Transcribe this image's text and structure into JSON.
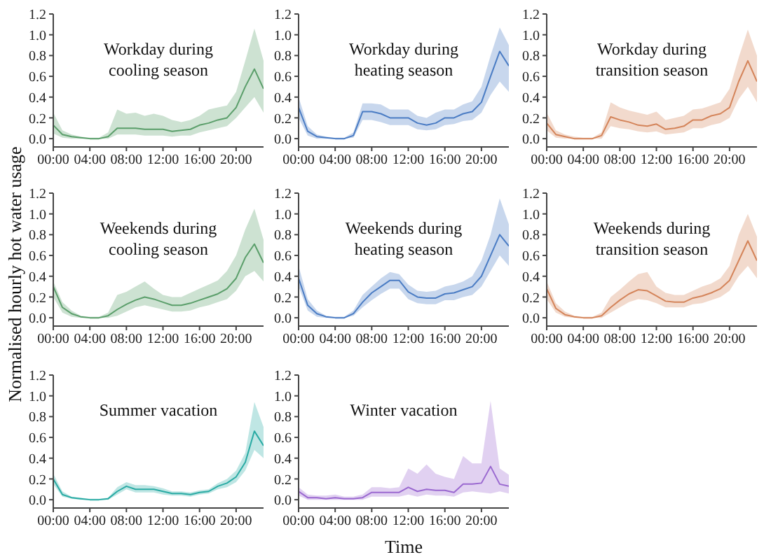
{
  "chart_data": [
    {
      "type": "line",
      "title": "Workday during cooling season",
      "x": [
        0,
        1,
        2,
        3,
        4,
        5,
        6,
        7,
        8,
        9,
        10,
        11,
        12,
        13,
        14,
        15,
        16,
        17,
        18,
        19,
        20,
        21,
        22,
        23
      ],
      "xlim": [
        0,
        23
      ],
      "xticks": [
        {
          "value": 0,
          "label": "00:00"
        },
        {
          "value": 4,
          "label": "04:00"
        },
        {
          "value": 8,
          "label": "08:00"
        },
        {
          "value": 12,
          "label": "12:00"
        },
        {
          "value": 16,
          "label": "16:00"
        },
        {
          "value": 20,
          "label": "20:00"
        }
      ],
      "ylim": [
        -0.08,
        1.2
      ],
      "yticks": [
        {
          "value": 0,
          "label": "0.0"
        },
        {
          "value": 0.2,
          "label": "0.2"
        },
        {
          "value": 0.4,
          "label": "0.4"
        },
        {
          "value": 0.6,
          "label": "0.6"
        },
        {
          "value": 0.8,
          "label": "0.8"
        },
        {
          "value": 1,
          "label": "1.0"
        },
        {
          "value": 1.2,
          "label": "1.2"
        }
      ],
      "series": [
        {
          "color": "#5a9e6a",
          "values": [
            0.13,
            0.04,
            0.02,
            0.01,
            0.0,
            0.0,
            0.02,
            0.1,
            0.1,
            0.1,
            0.09,
            0.09,
            0.09,
            0.07,
            0.08,
            0.09,
            0.13,
            0.15,
            0.18,
            0.2,
            0.3,
            0.5,
            0.67,
            0.48
          ],
          "lower": [
            0.05,
            0.01,
            0,
            0,
            0,
            0,
            0,
            0.04,
            0.04,
            0.04,
            0.03,
            0.03,
            0.03,
            0.02,
            0.03,
            0.03,
            0.06,
            0.08,
            0.1,
            0.12,
            0.2,
            0.3,
            0.4,
            0.25
          ],
          "upper": [
            0.25,
            0.08,
            0.04,
            0.02,
            0.01,
            0.01,
            0.06,
            0.28,
            0.24,
            0.25,
            0.22,
            0.24,
            0.22,
            0.18,
            0.16,
            0.18,
            0.22,
            0.28,
            0.3,
            0.32,
            0.45,
            0.75,
            1.06,
            0.75
          ]
        }
      ]
    },
    {
      "type": "line",
      "title": "Workday during heating season",
      "x": [
        0,
        1,
        2,
        3,
        4,
        5,
        6,
        7,
        8,
        9,
        10,
        11,
        12,
        13,
        14,
        15,
        16,
        17,
        18,
        19,
        20,
        21,
        22,
        23
      ],
      "xlim": [
        0,
        23
      ],
      "xticks": [
        {
          "value": 0,
          "label": "00:00"
        },
        {
          "value": 4,
          "label": "04:00"
        },
        {
          "value": 8,
          "label": "08:00"
        },
        {
          "value": 12,
          "label": "12:00"
        },
        {
          "value": 16,
          "label": "16:00"
        },
        {
          "value": 20,
          "label": "20:00"
        }
      ],
      "ylim": [
        -0.08,
        1.2
      ],
      "yticks": [
        {
          "value": 0,
          "label": "0.0"
        },
        {
          "value": 0.2,
          "label": "0.2"
        },
        {
          "value": 0.4,
          "label": "0.4"
        },
        {
          "value": 0.6,
          "label": "0.6"
        },
        {
          "value": 0.8,
          "label": "0.8"
        },
        {
          "value": 1,
          "label": "1.0"
        },
        {
          "value": 1.2,
          "label": "1.2"
        }
      ],
      "series": [
        {
          "color": "#4a7cc4",
          "values": [
            0.3,
            0.07,
            0.02,
            0.01,
            0,
            0,
            0.03,
            0.26,
            0.26,
            0.24,
            0.2,
            0.2,
            0.2,
            0.15,
            0.13,
            0.15,
            0.2,
            0.2,
            0.24,
            0.26,
            0.35,
            0.6,
            0.84,
            0.7
          ],
          "lower": [
            0.2,
            0.03,
            0,
            0,
            0,
            0,
            0.01,
            0.18,
            0.18,
            0.16,
            0.13,
            0.13,
            0.13,
            0.09,
            0.08,
            0.09,
            0.13,
            0.14,
            0.17,
            0.18,
            0.25,
            0.42,
            0.55,
            0.45
          ],
          "upper": [
            0.4,
            0.12,
            0.04,
            0.02,
            0.01,
            0.01,
            0.06,
            0.34,
            0.34,
            0.33,
            0.28,
            0.28,
            0.28,
            0.22,
            0.2,
            0.25,
            0.28,
            0.28,
            0.33,
            0.36,
            0.5,
            0.8,
            1.07,
            0.9
          ]
        }
      ]
    },
    {
      "type": "line",
      "title": "Workday during transition season",
      "x": [
        0,
        1,
        2,
        3,
        4,
        5,
        6,
        7,
        8,
        9,
        10,
        11,
        12,
        13,
        14,
        15,
        16,
        17,
        18,
        19,
        20,
        21,
        22,
        23
      ],
      "xlim": [
        0,
        23
      ],
      "xticks": [
        {
          "value": 0,
          "label": "00:00"
        },
        {
          "value": 4,
          "label": "04:00"
        },
        {
          "value": 8,
          "label": "08:00"
        },
        {
          "value": 12,
          "label": "12:00"
        },
        {
          "value": 16,
          "label": "16:00"
        },
        {
          "value": 20,
          "label": "20:00"
        }
      ],
      "ylim": [
        -0.08,
        1.2
      ],
      "yticks": [
        {
          "value": 0,
          "label": "0.0"
        },
        {
          "value": 0.2,
          "label": "0.2"
        },
        {
          "value": 0.4,
          "label": "0.4"
        },
        {
          "value": 0.6,
          "label": "0.6"
        },
        {
          "value": 0.8,
          "label": "0.8"
        },
        {
          "value": 1,
          "label": "1.0"
        },
        {
          "value": 1.2,
          "label": "1.2"
        }
      ],
      "series": [
        {
          "color": "#d4845a",
          "values": [
            0.15,
            0.04,
            0.02,
            0,
            0,
            0,
            0.03,
            0.21,
            0.18,
            0.16,
            0.13,
            0.12,
            0.14,
            0.09,
            0.1,
            0.12,
            0.18,
            0.18,
            0.22,
            0.24,
            0.3,
            0.55,
            0.75,
            0.55
          ],
          "lower": [
            0.08,
            0.01,
            0,
            0,
            0,
            0,
            0,
            0.12,
            0.1,
            0.09,
            0.07,
            0.06,
            0.07,
            0.04,
            0.05,
            0.06,
            0.1,
            0.1,
            0.13,
            0.15,
            0.2,
            0.38,
            0.5,
            0.35
          ],
          "upper": [
            0.25,
            0.08,
            0.04,
            0.02,
            0.01,
            0.01,
            0.06,
            0.35,
            0.3,
            0.27,
            0.25,
            0.23,
            0.26,
            0.18,
            0.2,
            0.22,
            0.28,
            0.29,
            0.32,
            0.35,
            0.48,
            0.78,
            1.05,
            0.8
          ]
        }
      ]
    },
    {
      "type": "line",
      "title": "Weekends during cooling season",
      "ylabel": "Normalised hourly hot water usage",
      "x": [
        0,
        1,
        2,
        3,
        4,
        5,
        6,
        7,
        8,
        9,
        10,
        11,
        12,
        13,
        14,
        15,
        16,
        17,
        18,
        19,
        20,
        21,
        22,
        23
      ],
      "xlim": [
        0,
        23
      ],
      "xticks": [
        {
          "value": 0,
          "label": "00:00"
        },
        {
          "value": 4,
          "label": "04:00"
        },
        {
          "value": 8,
          "label": "08:00"
        },
        {
          "value": 12,
          "label": "12:00"
        },
        {
          "value": 16,
          "label": "16:00"
        },
        {
          "value": 20,
          "label": "20:00"
        }
      ],
      "ylim": [
        -0.08,
        1.2
      ],
      "yticks": [
        {
          "value": 0,
          "label": "0.0"
        },
        {
          "value": 0.2,
          "label": "0.2"
        },
        {
          "value": 0.4,
          "label": "0.4"
        },
        {
          "value": 0.6,
          "label": "0.6"
        },
        {
          "value": 0.8,
          "label": "0.8"
        },
        {
          "value": 1,
          "label": "1.0"
        },
        {
          "value": 1.2,
          "label": "1.2"
        }
      ],
      "series": [
        {
          "color": "#5a9e6a",
          "values": [
            0.3,
            0.1,
            0.04,
            0.01,
            0,
            0,
            0.02,
            0.08,
            0.13,
            0.17,
            0.2,
            0.18,
            0.15,
            0.12,
            0.12,
            0.14,
            0.17,
            0.2,
            0.23,
            0.28,
            0.38,
            0.58,
            0.71,
            0.53
          ],
          "lower": [
            0.2,
            0.05,
            0.01,
            0,
            0,
            0,
            0,
            0.02,
            0.06,
            0.1,
            0.12,
            0.1,
            0.08,
            0.06,
            0.06,
            0.07,
            0.1,
            0.12,
            0.15,
            0.18,
            0.26,
            0.4,
            0.45,
            0.35
          ],
          "upper": [
            0.35,
            0.15,
            0.07,
            0.02,
            0.01,
            0.01,
            0.05,
            0.22,
            0.25,
            0.3,
            0.35,
            0.28,
            0.22,
            0.2,
            0.2,
            0.24,
            0.28,
            0.32,
            0.36,
            0.45,
            0.6,
            0.85,
            1.05,
            0.75
          ]
        }
      ]
    },
    {
      "type": "line",
      "title": "Weekends during heating season",
      "x": [
        0,
        1,
        2,
        3,
        4,
        5,
        6,
        7,
        8,
        9,
        10,
        11,
        12,
        13,
        14,
        15,
        16,
        17,
        18,
        19,
        20,
        21,
        22,
        23
      ],
      "xlim": [
        0,
        23
      ],
      "xticks": [
        {
          "value": 0,
          "label": "00:00"
        },
        {
          "value": 4,
          "label": "04:00"
        },
        {
          "value": 8,
          "label": "08:00"
        },
        {
          "value": 12,
          "label": "12:00"
        },
        {
          "value": 16,
          "label": "16:00"
        },
        {
          "value": 20,
          "label": "20:00"
        }
      ],
      "ylim": [
        -0.08,
        1.2
      ],
      "yticks": [
        {
          "value": 0,
          "label": "0.0"
        },
        {
          "value": 0.2,
          "label": "0.2"
        },
        {
          "value": 0.4,
          "label": "0.4"
        },
        {
          "value": 0.6,
          "label": "0.6"
        },
        {
          "value": 0.8,
          "label": "0.8"
        },
        {
          "value": 1,
          "label": "1.0"
        },
        {
          "value": 1.2,
          "label": "1.2"
        }
      ],
      "series": [
        {
          "color": "#4a7cc4",
          "values": [
            0.38,
            0.12,
            0.04,
            0.01,
            0,
            0,
            0.04,
            0.15,
            0.24,
            0.3,
            0.36,
            0.36,
            0.25,
            0.2,
            0.19,
            0.19,
            0.23,
            0.24,
            0.27,
            0.3,
            0.4,
            0.6,
            0.8,
            0.69
          ],
          "lower": [
            0.3,
            0.07,
            0.01,
            0,
            0,
            0,
            0.02,
            0.1,
            0.17,
            0.23,
            0.28,
            0.28,
            0.18,
            0.14,
            0.13,
            0.13,
            0.17,
            0.17,
            0.2,
            0.22,
            0.3,
            0.45,
            0.6,
            0.5
          ],
          "upper": [
            0.5,
            0.18,
            0.07,
            0.02,
            0.01,
            0.01,
            0.07,
            0.22,
            0.3,
            0.38,
            0.44,
            0.42,
            0.32,
            0.26,
            0.25,
            0.26,
            0.3,
            0.32,
            0.35,
            0.4,
            0.55,
            0.8,
            1.15,
            0.9
          ]
        }
      ]
    },
    {
      "type": "line",
      "title": "Weekends during transition season",
      "x": [
        0,
        1,
        2,
        3,
        4,
        5,
        6,
        7,
        8,
        9,
        10,
        11,
        12,
        13,
        14,
        15,
        16,
        17,
        18,
        19,
        20,
        21,
        22,
        23
      ],
      "xlim": [
        0,
        23
      ],
      "xticks": [
        {
          "value": 0,
          "label": "00:00"
        },
        {
          "value": 4,
          "label": "04:00"
        },
        {
          "value": 8,
          "label": "08:00"
        },
        {
          "value": 12,
          "label": "12:00"
        },
        {
          "value": 16,
          "label": "16:00"
        },
        {
          "value": 20,
          "label": "20:00"
        }
      ],
      "ylim": [
        -0.08,
        1.2
      ],
      "yticks": [
        {
          "value": 0,
          "label": "0.0"
        },
        {
          "value": 0.2,
          "label": "0.2"
        },
        {
          "value": 0.4,
          "label": "0.4"
        },
        {
          "value": 0.6,
          "label": "0.6"
        },
        {
          "value": 0.8,
          "label": "0.8"
        },
        {
          "value": 1,
          "label": "1.0"
        },
        {
          "value": 1.2,
          "label": "1.2"
        }
      ],
      "series": [
        {
          "color": "#d4845a",
          "values": [
            0.28,
            0.09,
            0.03,
            0.01,
            0,
            0,
            0.02,
            0.1,
            0.17,
            0.23,
            0.27,
            0.26,
            0.21,
            0.16,
            0.15,
            0.15,
            0.19,
            0.21,
            0.24,
            0.28,
            0.36,
            0.55,
            0.74,
            0.55
          ],
          "lower": [
            0.18,
            0.05,
            0.01,
            0,
            0,
            0,
            0,
            0.05,
            0.1,
            0.15,
            0.18,
            0.17,
            0.14,
            0.1,
            0.1,
            0.1,
            0.13,
            0.14,
            0.17,
            0.2,
            0.26,
            0.4,
            0.5,
            0.38
          ],
          "upper": [
            0.35,
            0.14,
            0.06,
            0.02,
            0.01,
            0.01,
            0.05,
            0.2,
            0.27,
            0.35,
            0.42,
            0.44,
            0.3,
            0.24,
            0.22,
            0.22,
            0.26,
            0.3,
            0.33,
            0.38,
            0.5,
            0.8,
            1.0,
            0.78
          ]
        }
      ]
    },
    {
      "type": "line",
      "title": "Summer vacation",
      "x": [
        0,
        1,
        2,
        3,
        4,
        5,
        6,
        7,
        8,
        9,
        10,
        11,
        12,
        13,
        14,
        15,
        16,
        17,
        18,
        19,
        20,
        21,
        22,
        23
      ],
      "xlim": [
        0,
        23
      ],
      "xticks": [
        {
          "value": 0,
          "label": "00:00"
        },
        {
          "value": 4,
          "label": "04:00"
        },
        {
          "value": 8,
          "label": "08:00"
        },
        {
          "value": 12,
          "label": "12:00"
        },
        {
          "value": 16,
          "label": "16:00"
        },
        {
          "value": 20,
          "label": "20:00"
        }
      ],
      "ylim": [
        -0.08,
        1.2
      ],
      "yticks": [
        {
          "value": 0,
          "label": "0.0"
        },
        {
          "value": 0.2,
          "label": "0.2"
        },
        {
          "value": 0.4,
          "label": "0.4"
        },
        {
          "value": 0.6,
          "label": "0.6"
        },
        {
          "value": 0.8,
          "label": "0.8"
        },
        {
          "value": 1,
          "label": "1.0"
        },
        {
          "value": 1.2,
          "label": "1.2"
        }
      ],
      "series": [
        {
          "color": "#2aaba4",
          "values": [
            0.2,
            0.05,
            0.02,
            0.01,
            0,
            0,
            0.01,
            0.08,
            0.13,
            0.1,
            0.1,
            0.1,
            0.08,
            0.06,
            0.06,
            0.05,
            0.07,
            0.08,
            0.13,
            0.16,
            0.22,
            0.36,
            0.66,
            0.52
          ],
          "lower": [
            0.15,
            0.03,
            0.01,
            0,
            0,
            0,
            0,
            0.05,
            0.1,
            0.07,
            0.07,
            0.07,
            0.05,
            0.04,
            0.04,
            0.03,
            0.05,
            0.06,
            0.1,
            0.12,
            0.17,
            0.28,
            0.48,
            0.4
          ],
          "upper": [
            0.25,
            0.08,
            0.03,
            0.02,
            0.01,
            0.01,
            0.02,
            0.12,
            0.17,
            0.14,
            0.14,
            0.13,
            0.11,
            0.08,
            0.08,
            0.07,
            0.09,
            0.1,
            0.16,
            0.2,
            0.28,
            0.45,
            0.94,
            0.7
          ]
        }
      ]
    },
    {
      "type": "line",
      "title": "Winter vacation",
      "xlabel": "Time",
      "x": [
        0,
        1,
        2,
        3,
        4,
        5,
        6,
        7,
        8,
        9,
        10,
        11,
        12,
        13,
        14,
        15,
        16,
        17,
        18,
        19,
        20,
        21,
        22,
        23
      ],
      "xlim": [
        0,
        23
      ],
      "xticks": [
        {
          "value": 0,
          "label": "00:00"
        },
        {
          "value": 4,
          "label": "04:00"
        },
        {
          "value": 8,
          "label": "08:00"
        },
        {
          "value": 12,
          "label": "12:00"
        },
        {
          "value": 16,
          "label": "16:00"
        },
        {
          "value": 20,
          "label": "20:00"
        }
      ],
      "ylim": [
        -0.08,
        1.2
      ],
      "yticks": [
        {
          "value": 0,
          "label": "0.0"
        },
        {
          "value": 0.2,
          "label": "0.2"
        },
        {
          "value": 0.4,
          "label": "0.4"
        },
        {
          "value": 0.6,
          "label": "0.6"
        },
        {
          "value": 0.8,
          "label": "0.8"
        },
        {
          "value": 1,
          "label": "1.0"
        },
        {
          "value": 1.2,
          "label": "1.2"
        }
      ],
      "series": [
        {
          "color": "#9a68d0",
          "values": [
            0.08,
            0.02,
            0.02,
            0.01,
            0.02,
            0.01,
            0.01,
            0.02,
            0.07,
            0.07,
            0.07,
            0.07,
            0.12,
            0.08,
            0.1,
            0.09,
            0.09,
            0.07,
            0.15,
            0.15,
            0.16,
            0.32,
            0.15,
            0.13
          ],
          "lower": [
            0.04,
            0,
            0,
            0,
            0,
            0,
            0,
            0,
            0.03,
            0.03,
            0.03,
            0.03,
            0.05,
            0.03,
            0.05,
            0.04,
            0.04,
            0.03,
            0.07,
            0.08,
            0.07,
            0.06,
            0.08,
            0.06
          ],
          "upper": [
            0.12,
            0.05,
            0.04,
            0.04,
            0.05,
            0.03,
            0.03,
            0.05,
            0.12,
            0.12,
            0.11,
            0.12,
            0.3,
            0.25,
            0.34,
            0.25,
            0.22,
            0.2,
            0.42,
            0.35,
            0.35,
            0.95,
            0.3,
            0.24
          ]
        }
      ]
    }
  ]
}
